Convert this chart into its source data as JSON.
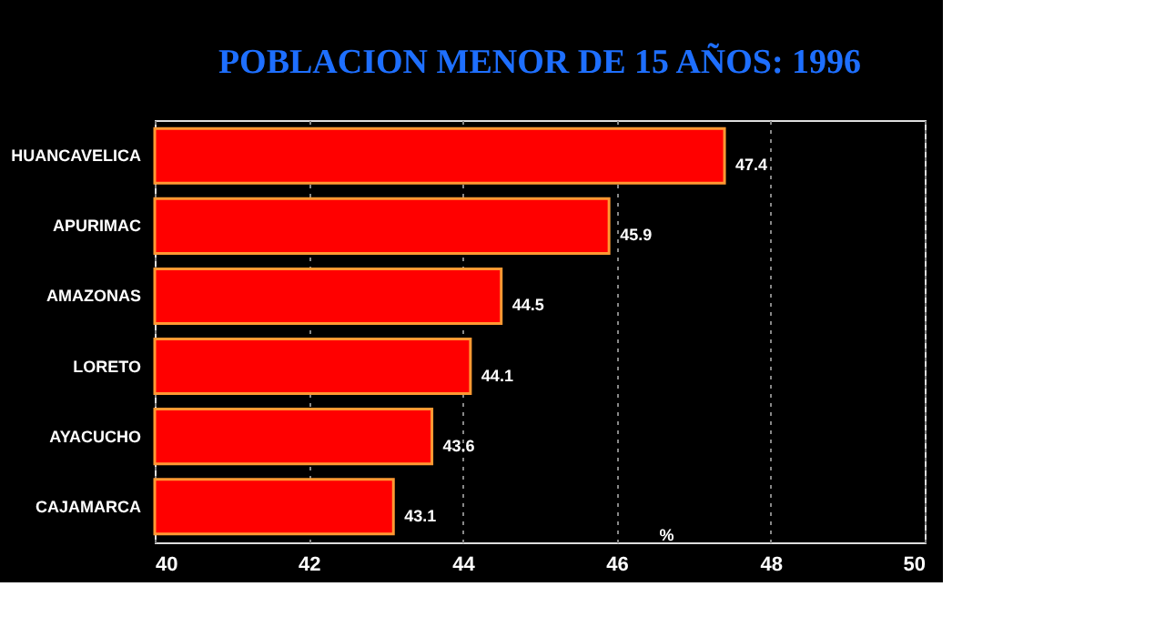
{
  "chart_data": {
    "type": "bar",
    "orientation": "horizontal",
    "title": "POBLACION MENOR DE 15 AÑOS: 1996",
    "categories": [
      "HUANCAVELICA",
      "APURIMAC",
      "AMAZONAS",
      "LORETO",
      "AYACUCHO",
      "CAJAMARCA"
    ],
    "values": [
      47.4,
      45.9,
      44.5,
      44.1,
      43.6,
      43.1
    ],
    "color": "#ff0000",
    "xlim": [
      40,
      50
    ],
    "xticks": [
      40,
      42,
      44,
      46,
      48,
      50
    ],
    "grid": "x",
    "data_labels": true,
    "annotations": [
      "%"
    ]
  }
}
